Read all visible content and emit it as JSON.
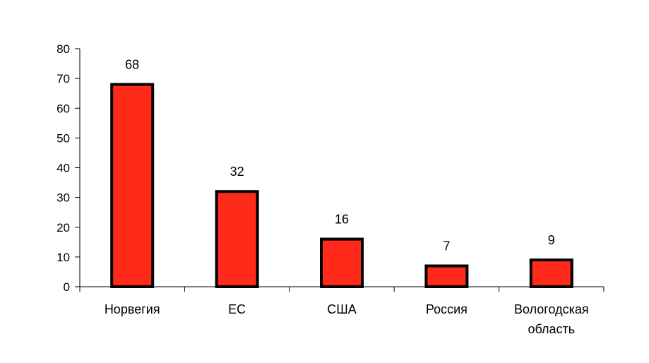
{
  "chart_data": {
    "type": "bar",
    "title": "",
    "xlabel": "",
    "ylabel": "",
    "categories": [
      [
        "Норвегия"
      ],
      [
        "ЕС"
      ],
      [
        "США"
      ],
      [
        "Россия"
      ],
      [
        "Вологодская",
        "область"
      ]
    ],
    "values": [
      68,
      32,
      16,
      7,
      9
    ],
    "data_labels": [
      "68",
      "32",
      "16",
      "7",
      "9"
    ],
    "ylim": [
      0,
      80
    ],
    "yticks": [
      0,
      10,
      20,
      30,
      40,
      50,
      60,
      70,
      80
    ],
    "grid": false,
    "legend": "none",
    "colors": {
      "bar_fill": "#ff2a1a",
      "bar_stroke": "#000000",
      "axis": "#000000"
    }
  }
}
